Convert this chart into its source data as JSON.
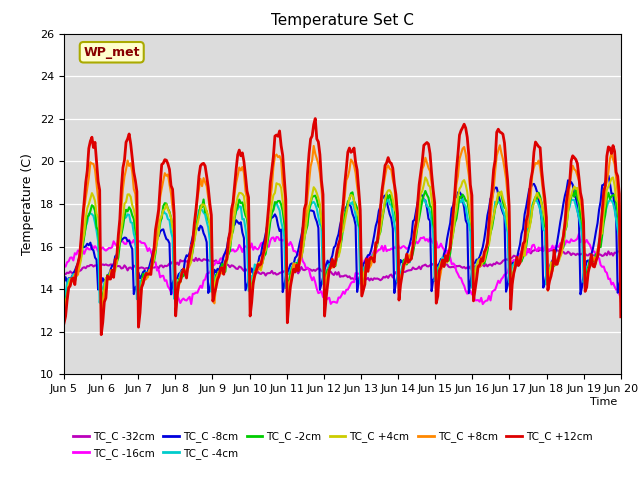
{
  "title": "Temperature Set C",
  "xlabel": "Time",
  "ylabel": "Temperature (C)",
  "ylim": [
    10,
    26
  ],
  "yticks": [
    10,
    12,
    14,
    16,
    18,
    20,
    22,
    24,
    26
  ],
  "background_color": "#dcdcdc",
  "legend_box_color": "#ffffcc",
  "legend_box_edge": "#aaaa00",
  "wp_met_label": "WP_met",
  "series_order": [
    "TC_C -32cm",
    "TC_C -16cm",
    "TC_C -8cm",
    "TC_C -4cm",
    "TC_C -2cm",
    "TC_C +4cm",
    "TC_C +8cm",
    "TC_C +12cm"
  ],
  "series_colors": [
    "#bb00bb",
    "#ff00ff",
    "#0000dd",
    "#00cccc",
    "#00cc00",
    "#cccc00",
    "#ff8800",
    "#dd0000"
  ],
  "series_lw": [
    1.5,
    1.5,
    1.5,
    1.5,
    1.5,
    1.5,
    1.5,
    2.0
  ],
  "xtick_labels": [
    "Jun 5",
    "Jun 6",
    "Jun 7",
    "Jun 8",
    "Jun 9",
    "Jun 10",
    "Jun 11",
    "Jun 12",
    "Jun 13",
    "Jun 14",
    "Jun 15",
    "Jun 16",
    "Jun 17",
    "Jun 18",
    "Jun 19",
    "Jun 20"
  ],
  "n_days": 15,
  "pts_per_day": 24
}
